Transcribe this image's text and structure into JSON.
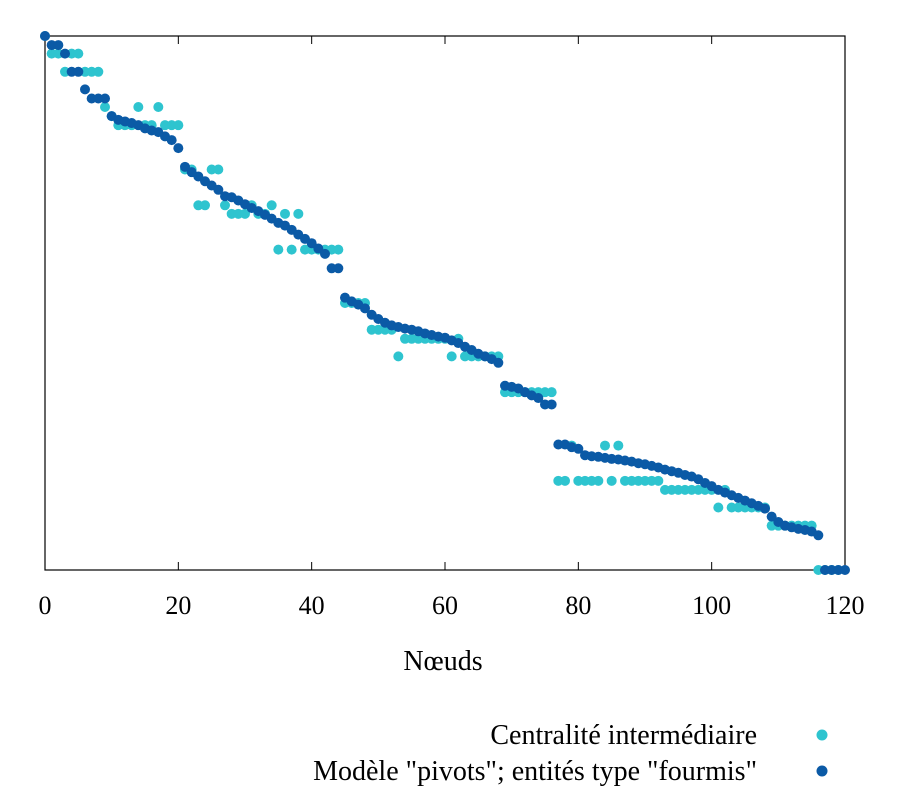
{
  "chart_data": {
    "type": "scatter",
    "title": "",
    "xlabel": "Nœuds",
    "ylabel": "",
    "xlim": [
      0,
      120
    ],
    "ylim": [
      0,
      1
    ],
    "x_ticks": [
      "0",
      "20",
      "40",
      "60",
      "80",
      "100",
      "120"
    ],
    "y_ticks_shown": false,
    "grid": false,
    "legend_position": "bottom-right",
    "series": [
      {
        "name": "Centralité intermédiaire",
        "color": "#2ec4cf",
        "points": [
          [
            0,
            1.0
          ],
          [
            1,
            0.967
          ],
          [
            2,
            0.967
          ],
          [
            3,
            0.933
          ],
          [
            4,
            0.967
          ],
          [
            5,
            0.967
          ],
          [
            6,
            0.933
          ],
          [
            7,
            0.933
          ],
          [
            8,
            0.933
          ],
          [
            9,
            0.867
          ],
          [
            10,
            0.85
          ],
          [
            11,
            0.833
          ],
          [
            12,
            0.833
          ],
          [
            13,
            0.833
          ],
          [
            14,
            0.867
          ],
          [
            15,
            0.833
          ],
          [
            16,
            0.833
          ],
          [
            17,
            0.867
          ],
          [
            18,
            0.833
          ],
          [
            19,
            0.833
          ],
          [
            20,
            0.833
          ],
          [
            21,
            0.75
          ],
          [
            22,
            0.75
          ],
          [
            23,
            0.683
          ],
          [
            24,
            0.683
          ],
          [
            25,
            0.75
          ],
          [
            26,
            0.75
          ],
          [
            27,
            0.683
          ],
          [
            28,
            0.667
          ],
          [
            29,
            0.667
          ],
          [
            30,
            0.667
          ],
          [
            31,
            0.683
          ],
          [
            32,
            0.667
          ],
          [
            33,
            0.667
          ],
          [
            34,
            0.683
          ],
          [
            35,
            0.6
          ],
          [
            36,
            0.667
          ],
          [
            37,
            0.6
          ],
          [
            38,
            0.667
          ],
          [
            39,
            0.6
          ],
          [
            40,
            0.6
          ],
          [
            41,
            0.6
          ],
          [
            42,
            0.6
          ],
          [
            43,
            0.6
          ],
          [
            44,
            0.6
          ],
          [
            45,
            0.5
          ],
          [
            46,
            0.5
          ],
          [
            47,
            0.5
          ],
          [
            48,
            0.5
          ],
          [
            49,
            0.45
          ],
          [
            50,
            0.45
          ],
          [
            51,
            0.45
          ],
          [
            52,
            0.45
          ],
          [
            53,
            0.4
          ],
          [
            54,
            0.433
          ],
          [
            55,
            0.433
          ],
          [
            56,
            0.433
          ],
          [
            57,
            0.433
          ],
          [
            58,
            0.433
          ],
          [
            59,
            0.433
          ],
          [
            60,
            0.433
          ],
          [
            61,
            0.4
          ],
          [
            62,
            0.433
          ],
          [
            63,
            0.4
          ],
          [
            64,
            0.4
          ],
          [
            65,
            0.4
          ],
          [
            66,
            0.4
          ],
          [
            67,
            0.4
          ],
          [
            68,
            0.4
          ],
          [
            69,
            0.333
          ],
          [
            70,
            0.333
          ],
          [
            71,
            0.333
          ],
          [
            72,
            0.333
          ],
          [
            73,
            0.333
          ],
          [
            74,
            0.333
          ],
          [
            75,
            0.333
          ],
          [
            76,
            0.333
          ],
          [
            77,
            0.167
          ],
          [
            78,
            0.167
          ],
          [
            79,
            0.233
          ],
          [
            80,
            0.167
          ],
          [
            81,
            0.167
          ],
          [
            82,
            0.167
          ],
          [
            83,
            0.167
          ],
          [
            84,
            0.233
          ],
          [
            85,
            0.167
          ],
          [
            86,
            0.233
          ],
          [
            87,
            0.167
          ],
          [
            88,
            0.167
          ],
          [
            89,
            0.167
          ],
          [
            90,
            0.167
          ],
          [
            91,
            0.167
          ],
          [
            92,
            0.167
          ],
          [
            93,
            0.15
          ],
          [
            94,
            0.15
          ],
          [
            95,
            0.15
          ],
          [
            96,
            0.15
          ],
          [
            97,
            0.15
          ],
          [
            98,
            0.15
          ],
          [
            99,
            0.15
          ],
          [
            100,
            0.15
          ],
          [
            101,
            0.117
          ],
          [
            102,
            0.15
          ],
          [
            103,
            0.117
          ],
          [
            104,
            0.117
          ],
          [
            105,
            0.117
          ],
          [
            106,
            0.117
          ],
          [
            107,
            0.117
          ],
          [
            108,
            0.117
          ],
          [
            109,
            0.083
          ],
          [
            110,
            0.083
          ],
          [
            111,
            0.083
          ],
          [
            112,
            0.083
          ],
          [
            113,
            0.083
          ],
          [
            114,
            0.083
          ],
          [
            115,
            0.083
          ],
          [
            116,
            0.0
          ],
          [
            117,
            0.0
          ],
          [
            118,
            0.0
          ],
          [
            119,
            0.0
          ]
        ]
      },
      {
        "name": "Modèle \"pivots\"; entités type \"fourmis\"",
        "color": "#0b5aa6",
        "points": [
          [
            0,
            1.0
          ],
          [
            1,
            0.983
          ],
          [
            2,
            0.983
          ],
          [
            3,
            0.967
          ],
          [
            4,
            0.933
          ],
          [
            5,
            0.933
          ],
          [
            6,
            0.9
          ],
          [
            7,
            0.883
          ],
          [
            8,
            0.883
          ],
          [
            9,
            0.883
          ],
          [
            10,
            0.85
          ],
          [
            11,
            0.843
          ],
          [
            12,
            0.84
          ],
          [
            13,
            0.837
          ],
          [
            14,
            0.833
          ],
          [
            15,
            0.827
          ],
          [
            16,
            0.823
          ],
          [
            17,
            0.82
          ],
          [
            18,
            0.812
          ],
          [
            19,
            0.805
          ],
          [
            20,
            0.79
          ],
          [
            21,
            0.755
          ],
          [
            22,
            0.745
          ],
          [
            23,
            0.737
          ],
          [
            24,
            0.728
          ],
          [
            25,
            0.72
          ],
          [
            26,
            0.712
          ],
          [
            27,
            0.7
          ],
          [
            28,
            0.698
          ],
          [
            29,
            0.692
          ],
          [
            30,
            0.685
          ],
          [
            31,
            0.678
          ],
          [
            32,
            0.672
          ],
          [
            33,
            0.665
          ],
          [
            34,
            0.658
          ],
          [
            35,
            0.65
          ],
          [
            36,
            0.645
          ],
          [
            37,
            0.637
          ],
          [
            38,
            0.628
          ],
          [
            39,
            0.62
          ],
          [
            40,
            0.612
          ],
          [
            41,
            0.602
          ],
          [
            42,
            0.592
          ],
          [
            43,
            0.565
          ],
          [
            44,
            0.565
          ],
          [
            45,
            0.51
          ],
          [
            46,
            0.503
          ],
          [
            47,
            0.497
          ],
          [
            48,
            0.49
          ],
          [
            49,
            0.478
          ],
          [
            50,
            0.47
          ],
          [
            51,
            0.463
          ],
          [
            52,
            0.458
          ],
          [
            53,
            0.455
          ],
          [
            54,
            0.452
          ],
          [
            55,
            0.45
          ],
          [
            56,
            0.447
          ],
          [
            57,
            0.443
          ],
          [
            58,
            0.44
          ],
          [
            59,
            0.437
          ],
          [
            60,
            0.435
          ],
          [
            61,
            0.43
          ],
          [
            62,
            0.425
          ],
          [
            63,
            0.418
          ],
          [
            64,
            0.412
          ],
          [
            65,
            0.405
          ],
          [
            66,
            0.4
          ],
          [
            67,
            0.395
          ],
          [
            68,
            0.388
          ],
          [
            69,
            0.345
          ],
          [
            70,
            0.343
          ],
          [
            71,
            0.34
          ],
          [
            72,
            0.333
          ],
          [
            73,
            0.327
          ],
          [
            74,
            0.322
          ],
          [
            75,
            0.31
          ],
          [
            76,
            0.31
          ],
          [
            77,
            0.235
          ],
          [
            78,
            0.235
          ],
          [
            79,
            0.23
          ],
          [
            80,
            0.227
          ],
          [
            81,
            0.215
          ],
          [
            82,
            0.213
          ],
          [
            83,
            0.212
          ],
          [
            84,
            0.21
          ],
          [
            85,
            0.208
          ],
          [
            86,
            0.207
          ],
          [
            87,
            0.205
          ],
          [
            88,
            0.203
          ],
          [
            89,
            0.2
          ],
          [
            90,
            0.198
          ],
          [
            91,
            0.195
          ],
          [
            92,
            0.192
          ],
          [
            93,
            0.188
          ],
          [
            94,
            0.185
          ],
          [
            95,
            0.182
          ],
          [
            96,
            0.178
          ],
          [
            97,
            0.175
          ],
          [
            98,
            0.17
          ],
          [
            99,
            0.163
          ],
          [
            100,
            0.157
          ],
          [
            101,
            0.15
          ],
          [
            102,
            0.145
          ],
          [
            103,
            0.14
          ],
          [
            104,
            0.135
          ],
          [
            105,
            0.13
          ],
          [
            106,
            0.125
          ],
          [
            107,
            0.12
          ],
          [
            108,
            0.115
          ],
          [
            109,
            0.1
          ],
          [
            110,
            0.09
          ],
          [
            111,
            0.083
          ],
          [
            112,
            0.08
          ],
          [
            113,
            0.077
          ],
          [
            114,
            0.075
          ],
          [
            115,
            0.072
          ],
          [
            116,
            0.065
          ],
          [
            117,
            0.0
          ],
          [
            118,
            0.0
          ],
          [
            119,
            0.0
          ],
          [
            120,
            0.0
          ]
        ]
      }
    ]
  }
}
